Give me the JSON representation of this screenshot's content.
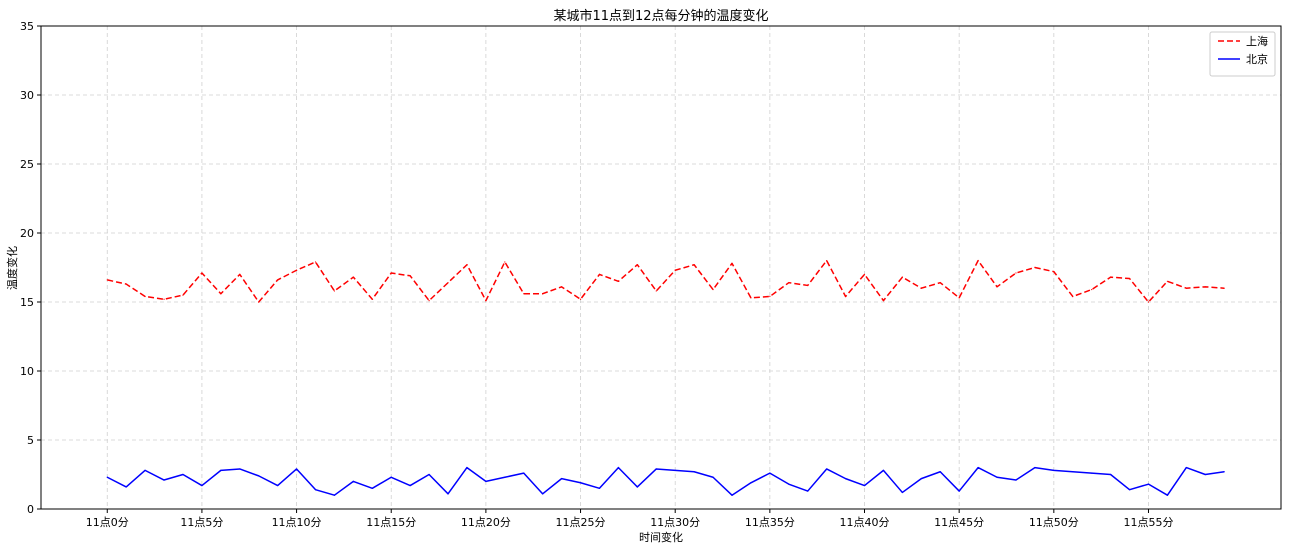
{
  "chart_data": {
    "type": "line",
    "title": "某城市11点到12点每分钟的温度变化",
    "xlabel": "时间变化",
    "ylabel": "温度变化",
    "x": [
      0,
      1,
      2,
      3,
      4,
      5,
      6,
      7,
      8,
      9,
      10,
      11,
      12,
      13,
      14,
      15,
      16,
      17,
      18,
      19,
      20,
      21,
      22,
      23,
      24,
      25,
      26,
      27,
      28,
      29,
      30,
      31,
      32,
      33,
      34,
      35,
      36,
      37,
      38,
      39,
      40,
      41,
      42,
      43,
      44,
      45,
      46,
      47,
      48,
      49,
      50,
      51,
      52,
      53,
      54,
      55,
      56,
      57,
      58,
      59
    ],
    "xticks": [
      0,
      5,
      10,
      15,
      20,
      25,
      30,
      35,
      40,
      45,
      50,
      55
    ],
    "xtick_labels": [
      "11点0分",
      "11点5分",
      "11点10分",
      "11点15分",
      "11点20分",
      "11点25分",
      "11点30分",
      "11点35分",
      "11点40分",
      "11点45分",
      "11点50分",
      "11点55分"
    ],
    "xlim": [
      -3.5,
      62
    ],
    "ylim": [
      0,
      35
    ],
    "yticks": [
      0,
      5,
      10,
      15,
      20,
      25,
      30,
      35
    ],
    "grid": true,
    "legend_position": "top-right",
    "series": [
      {
        "name": "上海",
        "color": "#ff0000",
        "style": "dashed",
        "values": [
          16.6,
          16.3,
          15.4,
          15.2,
          15.5,
          17.1,
          15.6,
          17.0,
          15.0,
          16.6,
          17.3,
          17.9,
          15.8,
          16.8,
          15.2,
          17.1,
          16.9,
          15.1,
          16.4,
          17.7,
          15.1,
          17.9,
          15.6,
          15.6,
          16.1,
          15.2,
          17.0,
          16.5,
          17.7,
          15.8,
          17.3,
          17.7,
          15.9,
          17.8,
          15.3,
          15.4,
          16.4,
          16.2,
          18.0,
          15.4,
          17.0,
          15.1,
          16.8,
          16.0,
          16.4,
          15.3,
          18.0,
          16.1,
          17.1,
          17.5,
          17.2,
          15.4,
          15.9,
          16.8,
          16.7,
          15.0,
          16.5,
          16.0,
          16.1,
          16.0
        ]
      },
      {
        "name": "北京",
        "color": "#0000ff",
        "style": "solid",
        "values": [
          2.3,
          1.6,
          2.8,
          2.1,
          2.5,
          1.7,
          2.8,
          2.9,
          2.4,
          1.7,
          2.9,
          1.4,
          1.0,
          2.0,
          1.5,
          2.3,
          1.7,
          2.5,
          1.1,
          3.0,
          2.0,
          2.3,
          2.6,
          1.1,
          2.2,
          1.9,
          1.5,
          3.0,
          1.6,
          2.9,
          2.8,
          2.7,
          2.3,
          1.0,
          1.9,
          2.6,
          1.8,
          1.3,
          2.9,
          2.2,
          1.7,
          2.8,
          1.2,
          2.2,
          2.7,
          1.3,
          3.0,
          2.3,
          2.1,
          3.0,
          2.8,
          2.7,
          2.6,
          2.5,
          1.4,
          1.8,
          1.0,
          3.0,
          2.5,
          2.7
        ]
      }
    ]
  }
}
